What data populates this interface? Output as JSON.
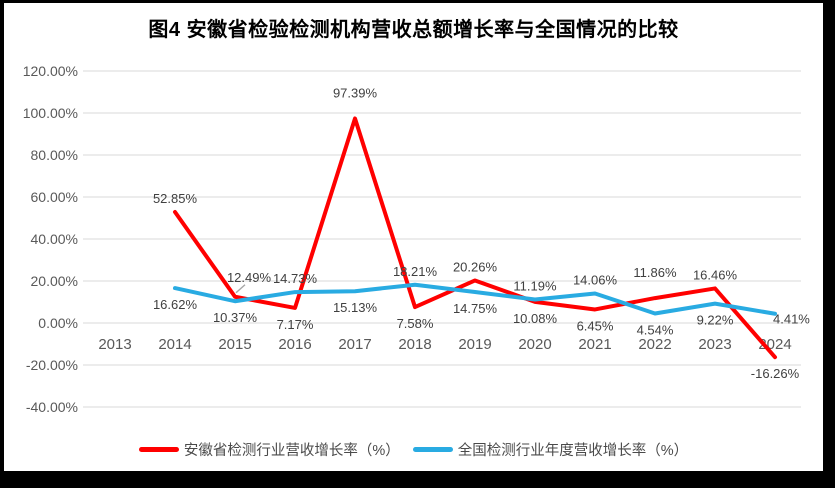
{
  "figure": {
    "title": "图4 安徽省检验检测机构营收总额增长率与全国情况的比较"
  },
  "colors": {
    "frame": "#000000",
    "background": "#FFFFFF",
    "series_anhui": "#FF0000",
    "series_national": "#29ABE2",
    "gridline": "#D9D9D9",
    "data_label": "#404040",
    "axis_label": "#595959",
    "leader_line": "#A6A6A6"
  },
  "chart_data": {
    "type": "line",
    "title": "图4 安徽省检验检测机构营收总额增长率与全国情况的比较",
    "categories": [
      "2013",
      "2014",
      "2015",
      "2016",
      "2017",
      "2018",
      "2019",
      "2020",
      "2021",
      "2022",
      "2023",
      "2024"
    ],
    "series": [
      {
        "name": "安徽省检测行业营收增长率（%）",
        "color": "#FF0000",
        "values": [
          null,
          52.85,
          12.49,
          7.17,
          97.39,
          7.58,
          20.26,
          10.08,
          6.45,
          11.86,
          16.46,
          -16.26
        ],
        "label_positions": [
          null,
          "above",
          "leader",
          "below",
          "above-far",
          "below",
          "above",
          "below",
          "below",
          "above-far",
          "above",
          "below"
        ]
      },
      {
        "name": "全国检测行业年度营收增长率（%）",
        "color": "#29ABE2",
        "values": [
          null,
          16.62,
          10.37,
          14.73,
          15.13,
          18.21,
          14.75,
          11.19,
          14.06,
          4.54,
          9.22,
          4.41
        ],
        "label_positions": [
          null,
          "below",
          "below",
          "above",
          "below",
          "above",
          "below",
          "above",
          "above",
          "below",
          "below",
          "right"
        ]
      }
    ],
    "ylim": [
      -40,
      120
    ],
    "ytick_step": 20,
    "ytick_format": "0.00%",
    "data_label_format": "0.00%",
    "grid": true,
    "legend_position": "bottom",
    "xlabel": "",
    "ylabel": ""
  }
}
